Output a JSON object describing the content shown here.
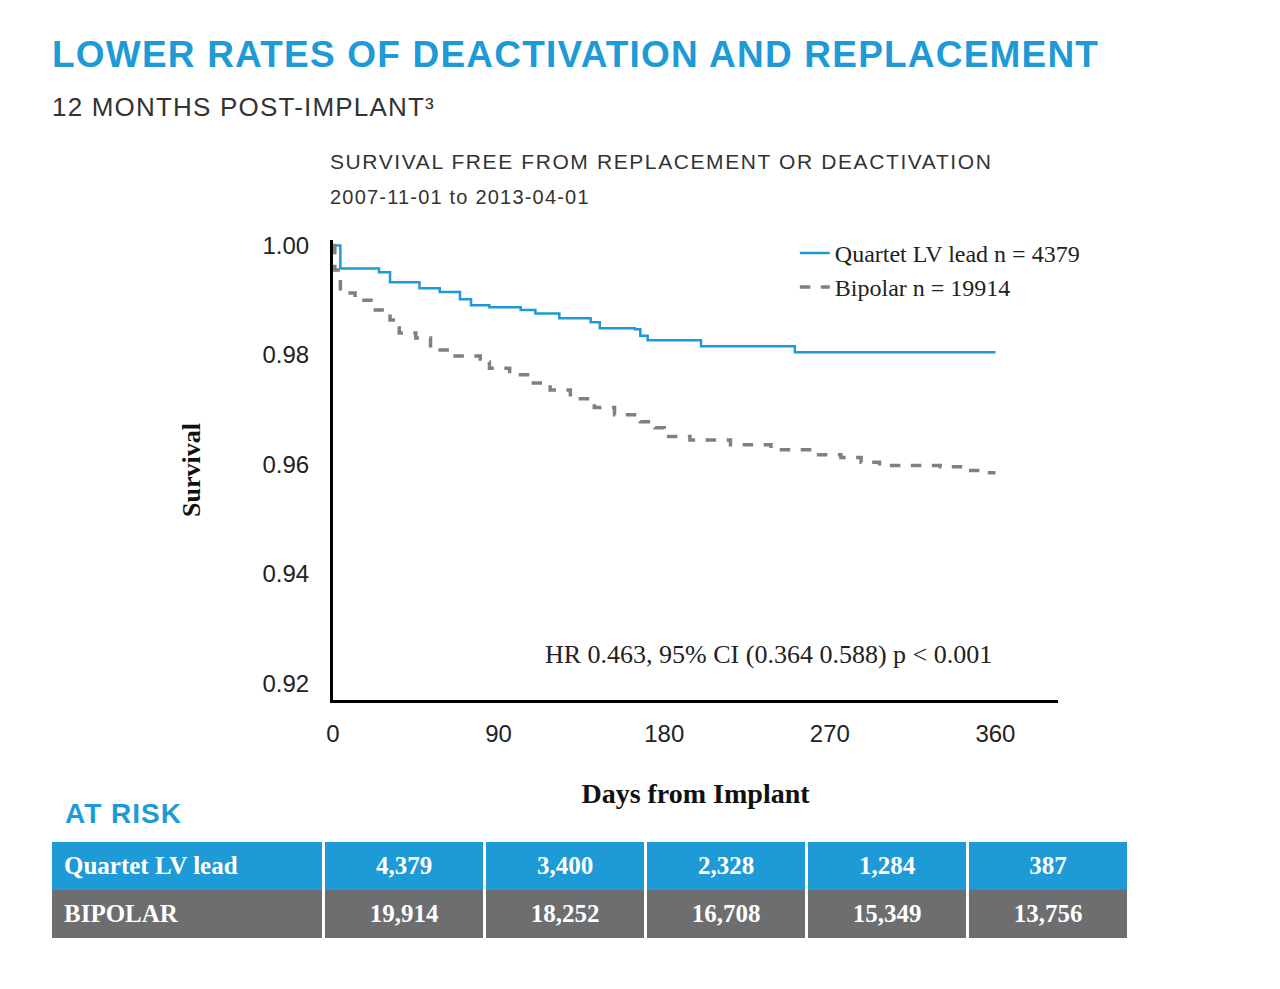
{
  "header": {
    "title": "LOWER RATES OF DEACTIVATION AND REPLACEMENT",
    "subtitle": "12 MONTHS POST-IMPLANT³"
  },
  "chart_data": {
    "type": "line",
    "title": "SURVIVAL FREE FROM REPLACEMENT OR DEACTIVATION",
    "subtitle": "2007-11-01 to 2013-04-01",
    "x_label": "Days from Implant",
    "y_label": "Survival",
    "annotations": [
      "HR 0.463, 95% CI (0.364 0.588) p < 0.001"
    ],
    "xlim": [
      0,
      394
    ],
    "ylim": [
      0.917,
      1.001
    ],
    "xticks": [
      0,
      90,
      180,
      270,
      360
    ],
    "yticks": [
      {
        "value": 1,
        "label": "1.00"
      },
      0.98,
      0.96,
      0.94,
      0.92
    ],
    "grid": false,
    "legend": "upper right",
    "series": [
      {
        "name": "Quartet LV lead n = 4379",
        "color": "#1e9ad6",
        "line_style": "solid",
        "x": [
          0,
          4,
          25,
          31,
          47,
          58,
          69,
          75,
          85,
          102,
          110,
          123,
          140,
          145,
          164,
          167,
          171,
          200,
          251,
          360
        ],
        "values": [
          1.0,
          0.9958,
          0.9951,
          0.9933,
          0.9922,
          0.9915,
          0.9902,
          0.9891,
          0.9887,
          0.9882,
          0.9876,
          0.9867,
          0.986,
          0.9849,
          0.9847,
          0.9835,
          0.9827,
          0.9816,
          0.9805,
          0.9805
        ]
      },
      {
        "name": "Bipolar n = 19914",
        "color": "#808080",
        "line_style": "dashed",
        "x": [
          0,
          1,
          4,
          12,
          23,
          31,
          36,
          45,
          53,
          64,
          80,
          85,
          96,
          107,
          118,
          129,
          142,
          153,
          167,
          175,
          180,
          194,
          216,
          238,
          259,
          276,
          287,
          297,
          330,
          341,
          352,
          360
        ],
        "values": [
          1.0,
          0.9955,
          0.9913,
          0.99,
          0.9882,
          0.9864,
          0.984,
          0.9831,
          0.9809,
          0.9798,
          0.9787,
          0.9776,
          0.9764,
          0.9749,
          0.9736,
          0.972,
          0.9704,
          0.9691,
          0.9678,
          0.9667,
          0.9651,
          0.9645,
          0.9636,
          0.9627,
          0.9618,
          0.9613,
          0.9604,
          0.9598,
          0.9596,
          0.9589,
          0.9585,
          0.9585
        ]
      }
    ]
  },
  "table": {
    "title": "AT RISK",
    "rows": [
      [
        "Quartet LV lead",
        "4,379",
        "3,400",
        "2,328",
        "1,284",
        "387"
      ],
      [
        "BIPOLAR",
        "19,914",
        "18,252",
        "16,708",
        "15,349",
        "13,756"
      ]
    ]
  }
}
